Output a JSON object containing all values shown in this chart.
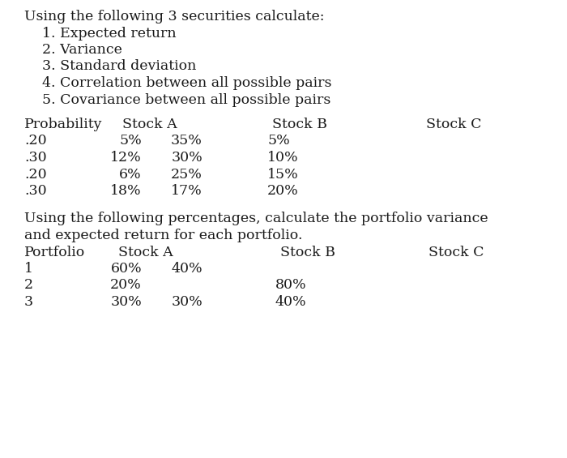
{
  "background_color": "#ffffff",
  "text_color": "#1a1a1a",
  "font_size": 12.5,
  "font_family": "DejaVu Serif",
  "title_text": "Using the following 3 securities calculate:",
  "items": [
    "1. Expected return",
    "2. Variance",
    "3. Standard deviation",
    "4. Correlation between all possible pairs",
    "5. Covariance between all possible pairs"
  ],
  "section2_line1": "Using the following percentages, calculate the portfolio variance",
  "section2_line2": "and expected return for each portfolio.",
  "t1_prob_header": "Probability",
  "t1_stockA_header": "Stock A",
  "t1_stockB_header": "Stock B",
  "t1_stockC_header": "Stock C",
  "t1_rows": [
    [
      ".20",
      "5%",
      "35%",
      "5%",
      ""
    ],
    [
      ".30",
      "12%",
      "30%",
      "10%",
      ""
    ],
    [
      ".20",
      "6%",
      "25%",
      "15%",
      ""
    ],
    [
      ".30",
      "18%",
      "17%",
      "20%",
      ""
    ]
  ],
  "t2_port_header": "Portfolio",
  "t2_stockA_header": "Stock A",
  "t2_stockB_header": "Stock B",
  "t2_stockC_header": "Stock C",
  "t2_rows": [
    [
      "1",
      "60%",
      "40%",
      "",
      ""
    ],
    [
      "2",
      "20%",
      "",
      "80%",
      ""
    ],
    [
      "3",
      "30%",
      "30%",
      "40%",
      ""
    ]
  ]
}
